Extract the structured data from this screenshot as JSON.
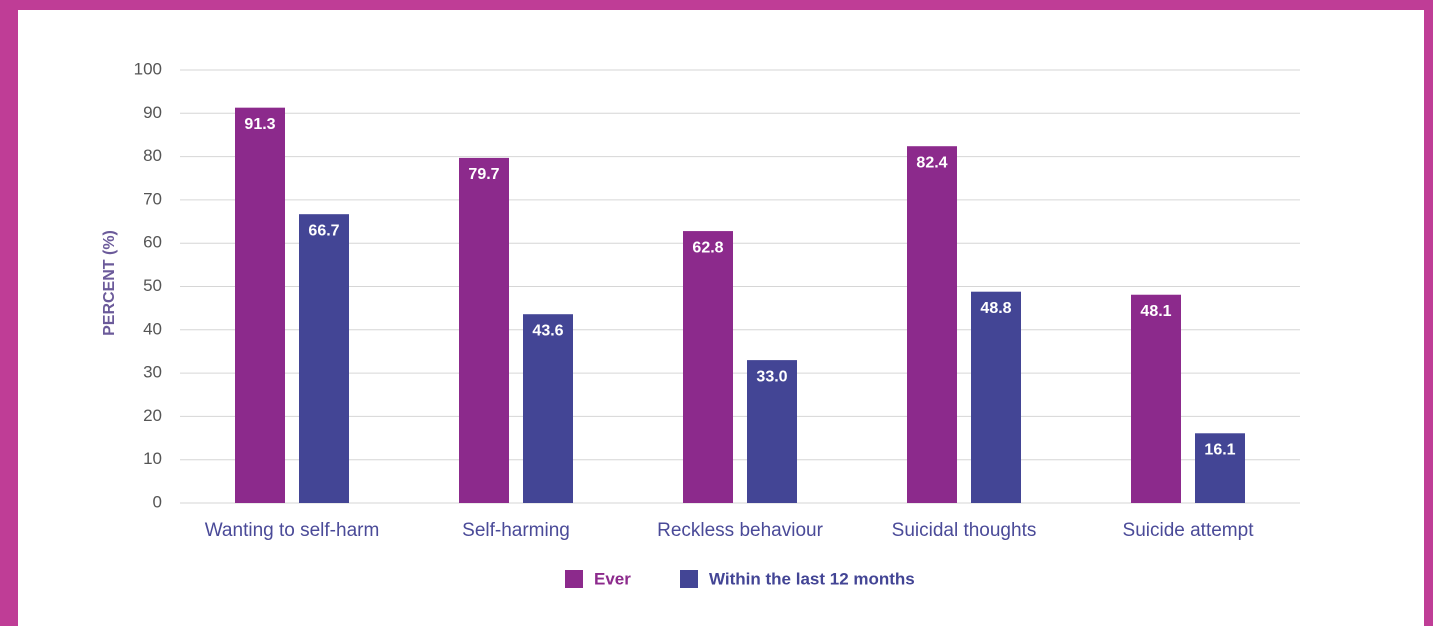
{
  "chart_data": {
    "type": "bar",
    "categories": [
      "Wanting to self-harm",
      "Self-harming",
      "Reckless behaviour",
      "Suicidal thoughts",
      "Suicide attempt"
    ],
    "series": [
      {
        "name": "Ever",
        "color": "#8c2a8c",
        "values": [
          91.3,
          79.7,
          62.8,
          82.4,
          48.1
        ],
        "value_labels": [
          "91.3",
          "79.7",
          "62.8",
          "82.4",
          "48.1"
        ]
      },
      {
        "name": "Within the last 12 months",
        "color": "#434595",
        "values": [
          66.7,
          43.6,
          33.0,
          48.8,
          16.1
        ],
        "value_labels": [
          "66.7",
          "43.6",
          "33.0",
          "48.8",
          "16.1"
        ]
      }
    ],
    "y_label": "PERCENT (%)",
    "ylim": [
      0,
      100
    ],
    "yticks": [
      0,
      10,
      20,
      30,
      40,
      50,
      60,
      70,
      80,
      90,
      100
    ],
    "grid": true,
    "legend": "bottom"
  }
}
